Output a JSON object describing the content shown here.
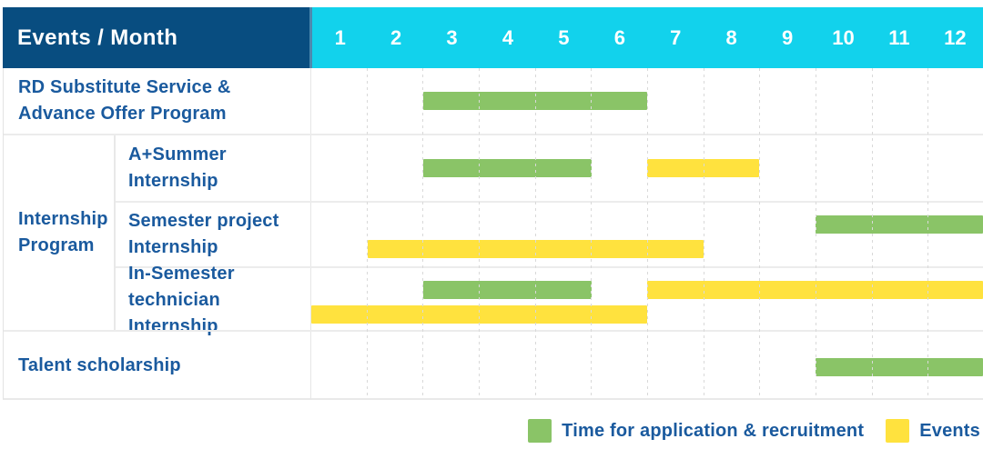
{
  "colors": {
    "header_bg": "#084d80",
    "month_bg": "#12d2ec",
    "bar_green": "#8ac467",
    "bar_yellow": "#ffe23e",
    "label_text": "#1a5a9e"
  },
  "header": {
    "title": "Events / Month"
  },
  "chart_data": {
    "type": "gantt",
    "months": [
      "1",
      "2",
      "3",
      "4",
      "5",
      "6",
      "7",
      "8",
      "9",
      "10",
      "11",
      "12"
    ],
    "group_label_lines": [
      "Internship",
      "Program"
    ],
    "rows": [
      {
        "label": "RD Substitute Service & Advance Offer Program",
        "lines": [
          "RD Substitute Service &",
          "Advance Offer Program"
        ],
        "section": "top",
        "bars": [
          {
            "color": "green",
            "start": 3,
            "end": 6,
            "slot": "center"
          }
        ]
      },
      {
        "label": "A+Summer Internship",
        "lines": [
          "A+Summer",
          "Internship"
        ],
        "section": "internship",
        "bars": [
          {
            "color": "green",
            "start": 3,
            "end": 5,
            "slot": "center"
          },
          {
            "color": "yellow",
            "start": 7,
            "end": 8,
            "slot": "center"
          }
        ]
      },
      {
        "label": "Semester project Internship",
        "lines": [
          "Semester project",
          "Internship"
        ],
        "section": "internship",
        "bars": [
          {
            "color": "green",
            "start": 10,
            "end": 12,
            "slot": "upper"
          },
          {
            "color": "yellow",
            "start": 2,
            "end": 7,
            "slot": "lower"
          }
        ]
      },
      {
        "label": "In-Semester technician Internship",
        "lines": [
          "In-Semester",
          "technician Internship"
        ],
        "section": "internship",
        "bars": [
          {
            "color": "green",
            "start": 3,
            "end": 5,
            "slot": "upper"
          },
          {
            "color": "yellow",
            "start": 7,
            "end": 12,
            "slot": "upper"
          },
          {
            "color": "yellow",
            "start": 1,
            "end": 6,
            "slot": "lower"
          }
        ]
      },
      {
        "label": "Talent scholarship",
        "lines": [
          "Talent scholarship"
        ],
        "section": "bottom",
        "bars": [
          {
            "color": "green",
            "start": 10,
            "end": 12,
            "slot": "center"
          }
        ]
      }
    ],
    "legend": [
      {
        "label": "Time for application & recruitment",
        "color": "green"
      },
      {
        "label": "Events",
        "color": "yellow"
      }
    ]
  }
}
